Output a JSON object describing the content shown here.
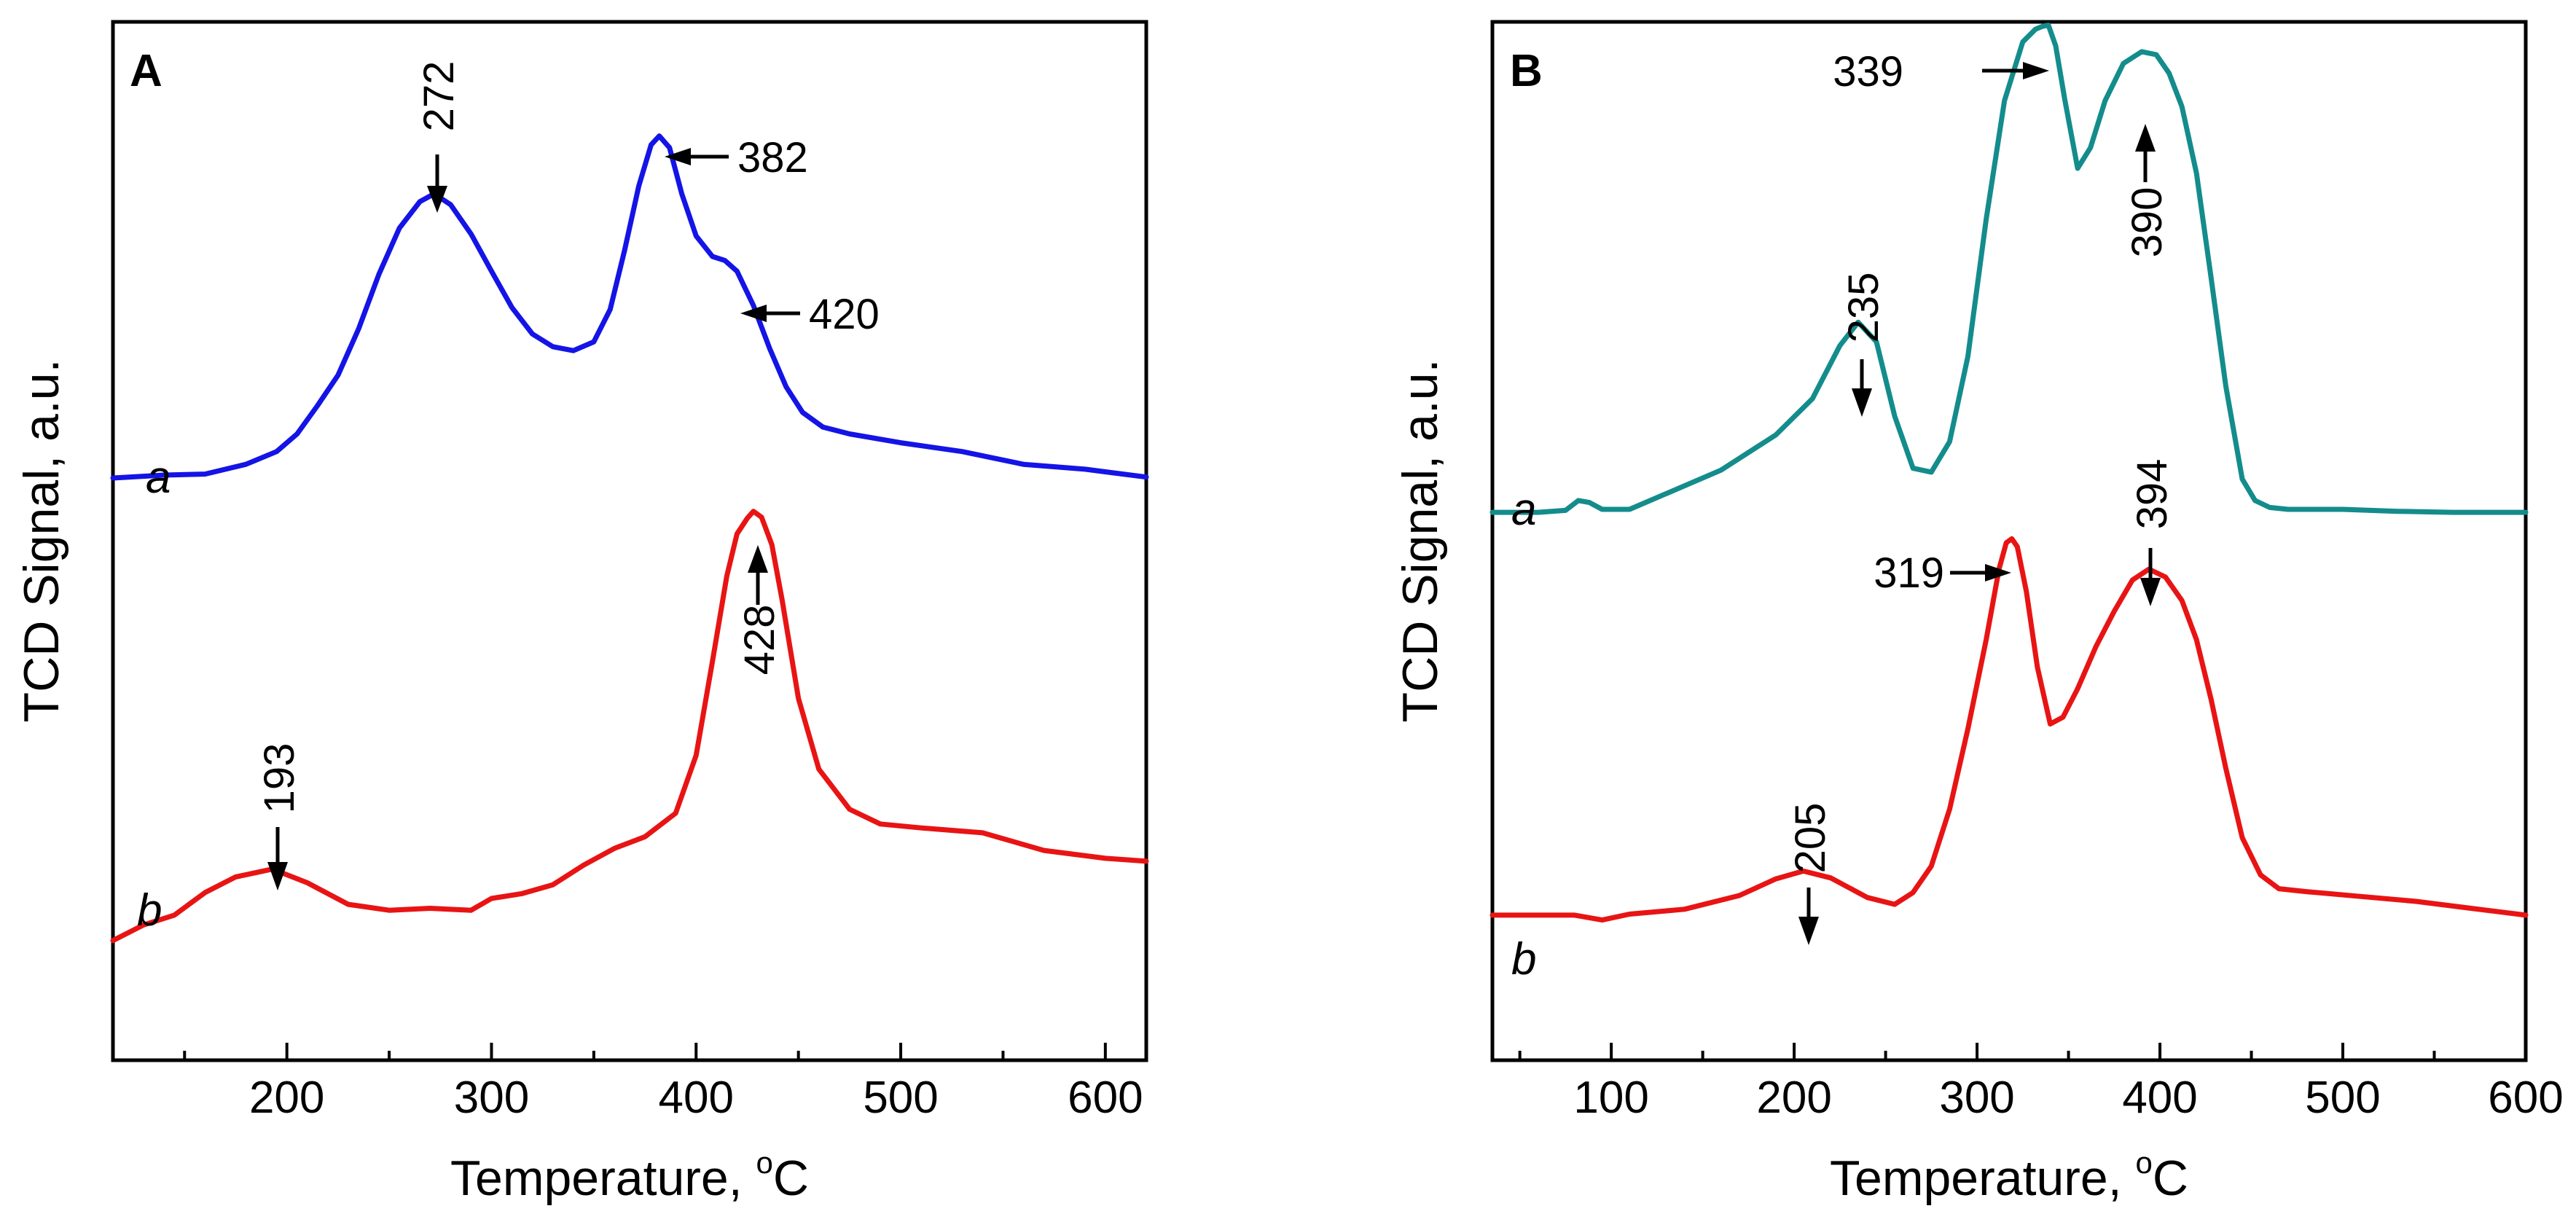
{
  "chart_data": [
    {
      "type": "line",
      "panel_label": "A",
      "xlabel": "Temperature, °C",
      "xlabel_main": "Temperature, ",
      "xlabel_deg": "o",
      "xlabel_unit": "C",
      "ylabel": "TCD Signal, a.u.",
      "xlim": [
        115,
        620
      ],
      "ylim": [
        0,
        100
      ],
      "xticks": [
        200,
        300,
        400,
        500,
        600
      ],
      "xtick_labels": [
        "200",
        "300",
        "400",
        "500",
        "600"
      ],
      "grid": false,
      "series": [
        {
          "name": "a",
          "color": "#1414e6",
          "x": [
            115,
            140,
            160,
            180,
            195,
            205,
            215,
            225,
            235,
            245,
            255,
            265,
            272,
            280,
            290,
            300,
            310,
            320,
            330,
            340,
            350,
            358,
            365,
            372,
            378,
            382,
            387,
            393,
            400,
            408,
            414,
            420,
            428,
            436,
            444,
            452,
            462,
            475,
            500,
            530,
            560,
            590,
            620
          ],
          "y": [
            54.2,
            54.5,
            54.6,
            55.6,
            56.9,
            58.7,
            61.6,
            64.7,
            69.4,
            75.0,
            79.7,
            82.4,
            83.2,
            82.1,
            79.1,
            75.3,
            71.6,
            68.9,
            67.6,
            67.2,
            68.1,
            71.4,
            77.4,
            84.0,
            88.2,
            89.1,
            87.9,
            83.2,
            78.9,
            76.8,
            76.4,
            75.3,
            71.8,
            67.4,
            63.5,
            60.9,
            59.4,
            58.7,
            57.8,
            56.9,
            55.6,
            55.1,
            54.3
          ]
        },
        {
          "name": "b",
          "color": "#e81414",
          "x": [
            115,
            130,
            145,
            160,
            175,
            193,
            210,
            230,
            250,
            270,
            290,
            300,
            315,
            330,
            345,
            360,
            375,
            390,
            400,
            408,
            415,
            420,
            425,
            428,
            432,
            437,
            442,
            450,
            460,
            475,
            490,
            510,
            540,
            570,
            600,
            620
          ],
          "y": [
            7.0,
            8.6,
            9.6,
            11.9,
            13.5,
            14.3,
            12.9,
            10.7,
            10.1,
            10.3,
            10.1,
            11.3,
            11.8,
            12.7,
            14.7,
            16.4,
            17.6,
            20.0,
            25.9,
            35.5,
            44.2,
            48.5,
            50.1,
            50.8,
            50.2,
            47.4,
            41.8,
            31.7,
            24.5,
            20.4,
            18.9,
            18.5,
            18.0,
            16.2,
            15.4,
            15.1
          ]
        }
      ],
      "annotations": [
        {
          "text": "272",
          "x": 272,
          "orientation": "vertical",
          "series": "a"
        },
        {
          "text": "382",
          "x": 382,
          "orientation": "horizontal",
          "series": "a"
        },
        {
          "text": "420",
          "x": 420,
          "orientation": "horizontal",
          "series": "a"
        },
        {
          "text": "193",
          "x": 193,
          "orientation": "vertical",
          "series": "b"
        },
        {
          "text": "428",
          "x": 428,
          "orientation": "vertical-up",
          "series": "b"
        }
      ]
    },
    {
      "type": "line",
      "panel_label": "B",
      "xlabel": "Temperature, °C",
      "xlabel_main": "Temperature, ",
      "xlabel_deg": "o",
      "xlabel_unit": "C",
      "ylabel": "TCD Signal, a.u.",
      "xlim": [
        35,
        600
      ],
      "ylim": [
        0,
        100
      ],
      "xticks": [
        100,
        200,
        300,
        400,
        500,
        600
      ],
      "xtick_labels": [
        "100",
        "200",
        "300",
        "400",
        "500",
        "600"
      ],
      "grid": false,
      "series": [
        {
          "name": "a",
          "color": "#148c8c",
          "x": [
            35,
            60,
            75,
            82,
            88,
            95,
            110,
            130,
            160,
            190,
            210,
            225,
            235,
            245,
            255,
            265,
            275,
            285,
            295,
            305,
            315,
            325,
            332,
            336,
            339,
            343,
            348,
            355,
            362,
            370,
            380,
            390,
            398,
            405,
            412,
            420,
            428,
            436,
            445,
            452,
            460,
            470,
            500,
            530,
            560,
            600
          ],
          "y": [
            50.7,
            50.7,
            50.9,
            51.9,
            51.7,
            51.0,
            51.0,
            52.6,
            55.0,
            58.6,
            62.3,
            67.7,
            70.1,
            68.1,
            60.5,
            55.2,
            54.8,
            57.9,
            66.6,
            80.6,
            92.7,
            98.7,
            100.0,
            100.3,
            100.4,
            98.3,
            92.8,
            85.8,
            87.9,
            92.7,
            96.5,
            97.7,
            97.4,
            95.5,
            92.1,
            85.3,
            74.6,
            63.6,
            54.1,
            51.9,
            51.2,
            51.0,
            51.0,
            50.8,
            50.7,
            50.7
          ]
        },
        {
          "name": "b",
          "color": "#e81414",
          "x": [
            35,
            80,
            95,
            110,
            140,
            170,
            190,
            205,
            220,
            240,
            255,
            265,
            275,
            285,
            295,
            305,
            312,
            316,
            319,
            322,
            327,
            333,
            340,
            347,
            355,
            365,
            375,
            385,
            394,
            403,
            412,
            420,
            428,
            436,
            445,
            455,
            465,
            480,
            510,
            540,
            570,
            600
          ],
          "y": [
            9.6,
            9.6,
            9.1,
            9.7,
            10.2,
            11.6,
            13.3,
            14.1,
            13.4,
            11.4,
            10.7,
            11.9,
            14.6,
            20.4,
            28.6,
            37.7,
            44.9,
            47.6,
            48.0,
            47.2,
            42.6,
            34.9,
            29.1,
            29.8,
            32.7,
            37.0,
            40.6,
            43.8,
            44.9,
            44.1,
            41.7,
            37.7,
            31.6,
            24.6,
            17.5,
            13.7,
            12.3,
            12.0,
            11.5,
            11.0,
            10.3,
            9.6
          ]
        }
      ],
      "annotations": [
        {
          "text": "339",
          "x": 339,
          "orientation": "horizontal",
          "series": "a"
        },
        {
          "text": "390",
          "x": 390,
          "orientation": "vertical-up",
          "series": "a"
        },
        {
          "text": "235",
          "x": 235,
          "orientation": "vertical",
          "series": "a"
        },
        {
          "text": "319",
          "x": 319,
          "orientation": "horizontal",
          "series": "b"
        },
        {
          "text": "394",
          "x": 394,
          "orientation": "vertical",
          "series": "b"
        },
        {
          "text": "205",
          "x": 205,
          "orientation": "vertical",
          "series": "b"
        }
      ]
    }
  ]
}
